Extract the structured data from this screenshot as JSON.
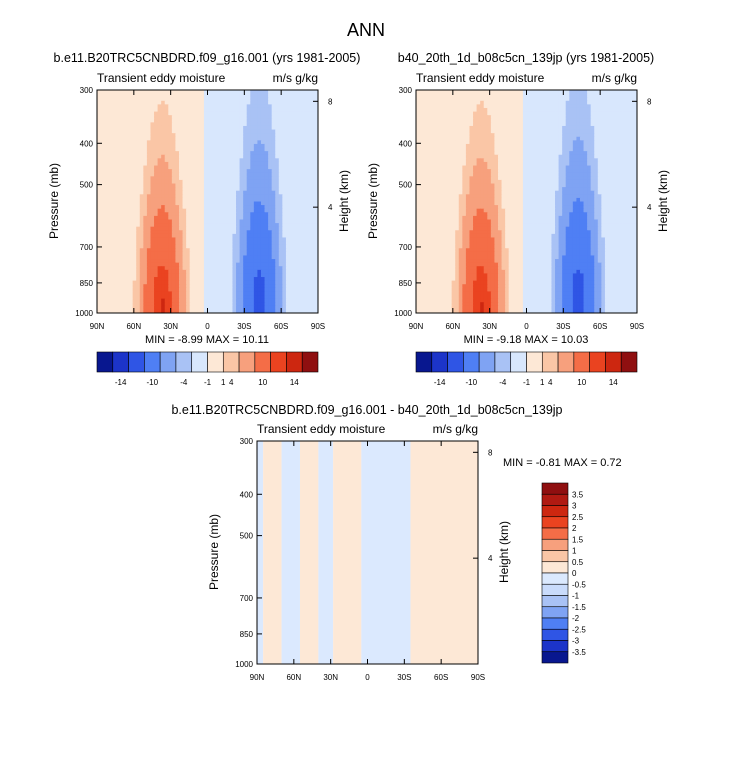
{
  "page_title": "ANN",
  "colors": {
    "diverging_14": [
      "#08178f",
      "#1c34c9",
      "#2f55e5",
      "#4f7ff4",
      "#7fa3f3",
      "#a9c2f5",
      "#d8e7fd",
      "#fde8d6",
      "#fac6a6",
      "#f7a07d",
      "#f46d47",
      "#ea4320",
      "#cd2710",
      "#8f0f10"
    ],
    "diff_16": [
      "#08178f",
      "#1c34c9",
      "#2f55e5",
      "#4f7ff4",
      "#7fa3f3",
      "#a9c2f5",
      "#c9dbfb",
      "#dbe9fe",
      "#fde8d6",
      "#fac6a6",
      "#f7a07d",
      "#f46d47",
      "#ea4320",
      "#cd2710",
      "#b01a12",
      "#8f0f10"
    ]
  },
  "chart_data": [
    {
      "id": "model-1",
      "type": "heatmap",
      "title": "b.e11.B20TRC5CNBDRD.f09_g16.001 (yrs 1981-2005)",
      "left_title": "Transient eddy moisture",
      "right_title": "m/s g/kg",
      "ylabel": "Pressure (mb)",
      "ylabel_right": "Height (km)",
      "x_ticks": [
        "90N",
        "60N",
        "30N",
        "0",
        "30S",
        "60S",
        "90S"
      ],
      "x_values": [
        90,
        60,
        30,
        0,
        -30,
        -60,
        -90
      ],
      "y_ticks": [
        "300",
        "400",
        "500",
        "700",
        "850",
        "1000"
      ],
      "y_values": [
        300,
        400,
        500,
        700,
        850,
        1000
      ],
      "y_right_ticks": [
        "8",
        "4"
      ],
      "y_right_values": [
        8,
        4
      ],
      "ylim": [
        300,
        1000
      ],
      "stats_text": "MIN =  -8.99   MAX =  10.11",
      "colorbar_labels": [
        "-14",
        "-10",
        "-4",
        "-1",
        "1",
        "4",
        "10",
        "14"
      ],
      "field": {
        "pos": {
          "center_lat": 37,
          "center_p": 980,
          "amp": 10.11,
          "lat_width": 15,
          "p_width": 430
        },
        "neg": {
          "center_lat": -42,
          "center_p": 960,
          "amp": -8.99,
          "lat_width": 15,
          "p_width": 460
        },
        "sign_boundary_lat": 2
      }
    },
    {
      "id": "model-2",
      "type": "heatmap",
      "title": "b40_20th_1d_b08c5cn_139jp (yrs 1981-2005)",
      "left_title": "Transient eddy moisture",
      "right_title": "m/s g/kg",
      "ylabel": "Pressure (mb)",
      "ylabel_right": "Height (km)",
      "x_ticks": [
        "90N",
        "60N",
        "30N",
        "0",
        "30S",
        "60S",
        "90S"
      ],
      "x_values": [
        90,
        60,
        30,
        0,
        -30,
        -60,
        -90
      ],
      "y_ticks": [
        "300",
        "400",
        "500",
        "700",
        "850",
        "1000"
      ],
      "y_values": [
        300,
        400,
        500,
        700,
        850,
        1000
      ],
      "y_right_ticks": [
        "8",
        "4"
      ],
      "y_right_values": [
        8,
        4
      ],
      "ylim": [
        300,
        1000
      ],
      "stats_text": "MIN =  -9.18   MAX =  10.03",
      "colorbar_labels": [
        "-14",
        "-10",
        "-4",
        "-1",
        "1",
        "4",
        "10",
        "14"
      ],
      "field": {
        "pos": {
          "center_lat": 37,
          "center_p": 980,
          "amp": 10.03,
          "lat_width": 15,
          "p_width": 430
        },
        "neg": {
          "center_lat": -42,
          "center_p": 960,
          "amp": -9.18,
          "lat_width": 15,
          "p_width": 460
        },
        "sign_boundary_lat": 2
      }
    },
    {
      "id": "difference",
      "type": "heatmap",
      "title": "b.e11.B20TRC5CNBDRD.f09_g16.001 - b40_20th_1d_b08c5cn_139jp",
      "left_title": "Transient eddy moisture",
      "right_title": "m/s g/kg",
      "ylabel": "Pressure (mb)",
      "ylabel_right": "Height (km)",
      "x_ticks": [
        "90N",
        "60N",
        "30N",
        "0",
        "30S",
        "60S",
        "90S"
      ],
      "x_values": [
        90,
        60,
        30,
        0,
        -30,
        -60,
        -90
      ],
      "y_ticks": [
        "300",
        "400",
        "500",
        "700",
        "850",
        "1000"
      ],
      "y_values": [
        300,
        400,
        500,
        700,
        850,
        1000
      ],
      "y_right_ticks": [
        "8",
        "4"
      ],
      "y_right_values": [
        8,
        4
      ],
      "ylim": [
        300,
        1000
      ],
      "stats_text": "MIN =  -0.81   MAX =   0.72",
      "colorbar_labels": [
        "3.5",
        "3",
        "2.5",
        "2",
        "1.5",
        "1",
        "0.5",
        "0",
        "-0.5",
        "-1",
        "-1.5",
        "-2",
        "-2.5",
        "-3",
        "-3.5"
      ],
      "bands": [
        {
          "lat_from": 90,
          "lat_to": 85,
          "sign": "neg"
        },
        {
          "lat_from": 85,
          "lat_to": 70,
          "sign": "pos"
        },
        {
          "lat_from": 70,
          "lat_to": 55,
          "sign": "neg"
        },
        {
          "lat_from": 55,
          "lat_to": 40,
          "sign": "pos"
        },
        {
          "lat_from": 40,
          "lat_to": 28,
          "sign": "neg"
        },
        {
          "lat_from": 28,
          "lat_to": 5,
          "sign": "pos"
        },
        {
          "lat_from": 5,
          "lat_to": -35,
          "sign": "neg"
        },
        {
          "lat_from": -35,
          "lat_to": -90,
          "sign": "pos"
        }
      ]
    }
  ]
}
